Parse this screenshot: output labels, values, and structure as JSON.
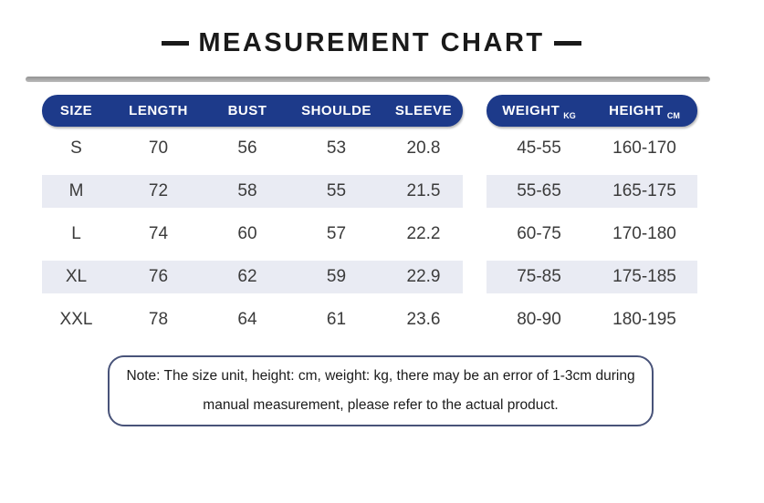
{
  "title": {
    "text": "MEASUREMENT CHART"
  },
  "table": {
    "headers": {
      "size": "SIZE",
      "length": "LENGTH",
      "bust": "BUST",
      "shoulder": "SHOULDE",
      "sleeve": "SLEEVE",
      "weight": "WEIGHT",
      "weight_unit": "KG",
      "height": "HEIGHT",
      "height_unit": "CM"
    },
    "rows": [
      {
        "size": "S",
        "length": "70",
        "bust": "56",
        "shoulder": "53",
        "sleeve": "20.8",
        "weight": "45-55",
        "height": "160-170"
      },
      {
        "size": "M",
        "length": "72",
        "bust": "58",
        "shoulder": "55",
        "sleeve": "21.5",
        "weight": "55-65",
        "height": "165-175"
      },
      {
        "size": "L",
        "length": "74",
        "bust": "60",
        "shoulder": "57",
        "sleeve": "22.2",
        "weight": "60-75",
        "height": "170-180"
      },
      {
        "size": "XL",
        "length": "76",
        "bust": "62",
        "shoulder": "59",
        "sleeve": "22.9",
        "weight": "75-85",
        "height": "175-185"
      },
      {
        "size": "XXL",
        "length": "78",
        "bust": "64",
        "shoulder": "61",
        "sleeve": "23.6",
        "weight": "80-90",
        "height": "180-195"
      }
    ]
  },
  "note": {
    "line1": "Note: The size unit, height: cm, weight: kg, there may be an error of 1-3cm during",
    "line2": "manual measurement, please refer to the actual product."
  },
  "colors": {
    "header_blue": "#1d3a8a",
    "row_shade": "#e9ebf3",
    "note_border": "#485379",
    "divider_gray": "#a0a0a0",
    "title_black": "#1a1a1a"
  }
}
